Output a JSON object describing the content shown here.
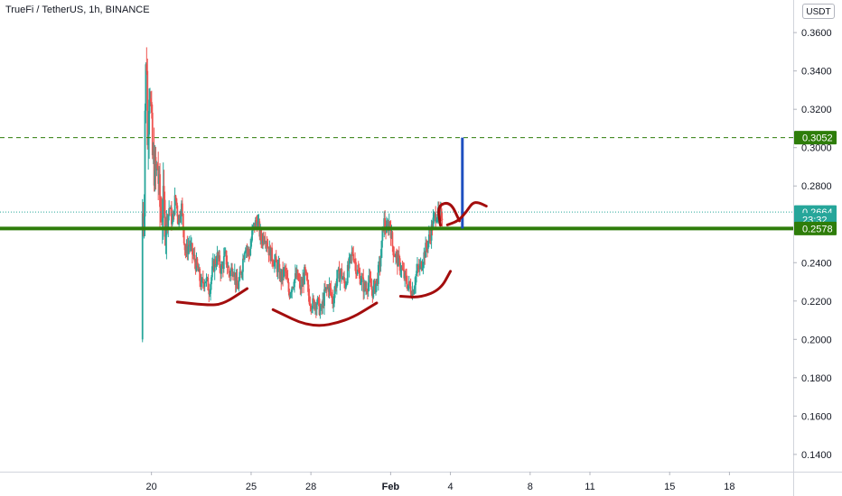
{
  "header": {
    "symbol_title": "TrueFi / TetherUS, 1h, BINANCE",
    "currency": "USDT"
  },
  "colors": {
    "up": "#26a69a",
    "down": "#ef5350",
    "support": "#2e7d0a",
    "target": "#1e4fc0",
    "annotation": "#a30d0d",
    "last_price": "#26a69a"
  },
  "chart_data": {
    "type": "candlestick",
    "title": "TrueFi / TetherUS, 1h, BINANCE",
    "y_axis": {
      "ticks": [
        0.36,
        0.34,
        0.32,
        0.3,
        0.28,
        0.24,
        0.22,
        0.2,
        0.18,
        0.16,
        0.14
      ],
      "tick_labels": [
        "0.3600",
        "0.3400",
        "0.3200",
        "0.3000",
        "0.2800",
        "0.2400",
        "0.2200",
        "0.2000",
        "0.1800",
        "0.1600",
        "0.1400"
      ],
      "range": [
        0.131,
        0.377
      ],
      "position": "right"
    },
    "x_axis": {
      "ticks": [
        19.7,
        24.7,
        27.7,
        31.7,
        34.7,
        38.7,
        41.7,
        45.7,
        48.7
      ],
      "tick_labels": [
        "20",
        "25",
        "28",
        "Feb",
        "4",
        "8",
        "11",
        "15",
        "18"
      ],
      "range": [
        12.1,
        51.9
      ],
      "unit": "day"
    },
    "price_path": [
      [
        19.3,
        0.2
      ],
      [
        19.35,
        0.31
      ],
      [
        19.45,
        0.355
      ],
      [
        19.5,
        0.3
      ],
      [
        19.6,
        0.34
      ],
      [
        19.75,
        0.295
      ],
      [
        19.9,
        0.285
      ],
      [
        20.0,
        0.29
      ],
      [
        20.15,
        0.265
      ],
      [
        20.3,
        0.27
      ],
      [
        20.45,
        0.258
      ],
      [
        20.6,
        0.27
      ],
      [
        20.75,
        0.26
      ],
      [
        20.9,
        0.275
      ],
      [
        21.05,
        0.262
      ],
      [
        21.2,
        0.27
      ],
      [
        21.4,
        0.245
      ],
      [
        21.6,
        0.25
      ],
      [
        21.8,
        0.243
      ],
      [
        22.0,
        0.237
      ],
      [
        22.2,
        0.228
      ],
      [
        22.4,
        0.232
      ],
      [
        22.6,
        0.226
      ],
      [
        22.8,
        0.238
      ],
      [
        23.0,
        0.243
      ],
      [
        23.2,
        0.236
      ],
      [
        23.4,
        0.244
      ],
      [
        23.6,
        0.234
      ],
      [
        23.8,
        0.238
      ],
      [
        24.0,
        0.226
      ],
      [
        24.2,
        0.235
      ],
      [
        24.4,
        0.25
      ],
      [
        24.6,
        0.244
      ],
      [
        24.8,
        0.258
      ],
      [
        25.0,
        0.262
      ],
      [
        25.2,
        0.252
      ],
      [
        25.4,
        0.255
      ],
      [
        25.6,
        0.246
      ],
      [
        25.8,
        0.242
      ],
      [
        26.0,
        0.238
      ],
      [
        26.2,
        0.232
      ],
      [
        26.4,
        0.236
      ],
      [
        26.6,
        0.224
      ],
      [
        26.8,
        0.23
      ],
      [
        27.0,
        0.233
      ],
      [
        27.2,
        0.226
      ],
      [
        27.4,
        0.235
      ],
      [
        27.6,
        0.222
      ],
      [
        27.8,
        0.218
      ],
      [
        28.0,
        0.22
      ],
      [
        28.2,
        0.214
      ],
      [
        28.4,
        0.224
      ],
      [
        28.6,
        0.228
      ],
      [
        28.8,
        0.22
      ],
      [
        29.0,
        0.232
      ],
      [
        29.2,
        0.235
      ],
      [
        29.4,
        0.228
      ],
      [
        29.6,
        0.238
      ],
      [
        29.8,
        0.246
      ],
      [
        30.0,
        0.236
      ],
      [
        30.2,
        0.232
      ],
      [
        30.4,
        0.226
      ],
      [
        30.6,
        0.23
      ],
      [
        30.8,
        0.225
      ],
      [
        31.0,
        0.23
      ],
      [
        31.2,
        0.242
      ],
      [
        31.35,
        0.262
      ],
      [
        31.5,
        0.256
      ],
      [
        31.65,
        0.262
      ],
      [
        31.8,
        0.248
      ],
      [
        32.0,
        0.242
      ],
      [
        32.2,
        0.238
      ],
      [
        32.4,
        0.232
      ],
      [
        32.6,
        0.228
      ],
      [
        32.8,
        0.225
      ],
      [
        33.0,
        0.235
      ],
      [
        33.2,
        0.238
      ],
      [
        33.4,
        0.245
      ],
      [
        33.55,
        0.25
      ],
      [
        33.7,
        0.255
      ],
      [
        33.85,
        0.262
      ],
      [
        34.0,
        0.266
      ],
      [
        34.15,
        0.264
      ],
      [
        34.3,
        0.266
      ]
    ],
    "levels": {
      "upper_dashed": 0.3052,
      "last_price": 0.2664,
      "support": 0.2578
    },
    "price_tags": [
      {
        "label": "0.3052",
        "value": 0.3052,
        "color": "#2e7d0a"
      },
      {
        "label": "0.2664",
        "value": 0.2664,
        "color": "#26a69a"
      },
      {
        "label": "23:32",
        "value": 0.2624,
        "color": "#26a69a"
      },
      {
        "label": "0.2578",
        "value": 0.2578,
        "color": "#2e7d0a"
      }
    ],
    "annotations": {
      "target_line": {
        "x": 35.3,
        "y1": 0.2578,
        "y2": 0.3052
      },
      "arcs": [
        {
          "points": [
            [
              21.0,
              0.2195
            ],
            [
              22.5,
              0.2178
            ],
            [
              23.3,
              0.2183
            ],
            [
              24.5,
              0.2265
            ]
          ]
        },
        {
          "points": [
            [
              25.8,
              0.2155
            ],
            [
              27.7,
              0.206
            ],
            [
              29.5,
              0.2095
            ],
            [
              31.0,
              0.219
            ]
          ]
        },
        {
          "points": [
            [
              32.2,
              0.2225
            ],
            [
              33.2,
              0.2218
            ],
            [
              34.2,
              0.226
            ],
            [
              34.7,
              0.2355
            ]
          ]
        },
        {
          "points": [
            [
              34.2,
              0.2595
            ],
            [
              34.05,
              0.2698
            ],
            [
              34.7,
              0.2718
            ],
            [
              35.15,
              0.2618
            ]
          ]
        },
        {
          "points": [
            [
              34.55,
              0.2597
            ],
            [
              35.1,
              0.2618
            ],
            [
              35.5,
              0.2665
            ],
            [
              35.8,
              0.2712
            ],
            [
              36.1,
              0.2715
            ],
            [
              36.5,
              0.2695
            ]
          ]
        }
      ]
    }
  }
}
